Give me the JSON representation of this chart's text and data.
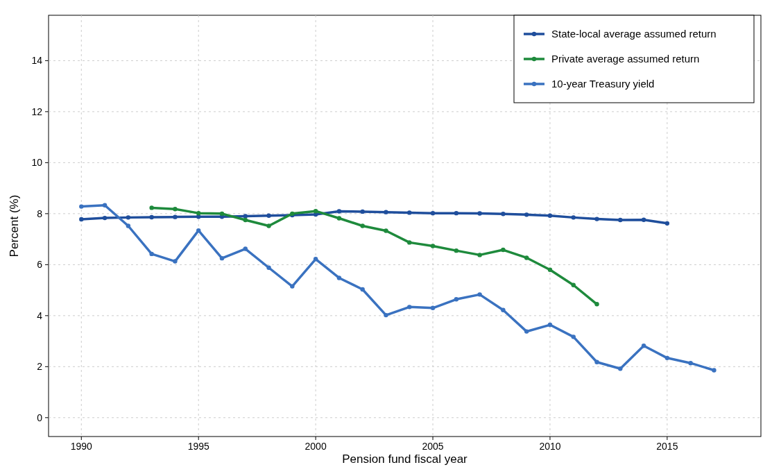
{
  "chart_data": {
    "type": "line",
    "xlabel": "Pension fund fiscal year",
    "ylabel": "Percent (%)",
    "xlim": [
      1988.6,
      2019
    ],
    "xticks": [
      1990,
      1995,
      2000,
      2005,
      2010,
      2015
    ],
    "ylim": [
      -0.74,
      15.78
    ],
    "yticks": [
      0,
      2,
      4,
      6,
      8,
      10,
      12,
      14
    ],
    "grid": true,
    "legend": "top right",
    "marker": "circle",
    "line_style": "solid",
    "series": [
      {
        "name": "State-local average assumed return",
        "color": "#1f4e9c",
        "x": [
          1990,
          1991,
          1992,
          1993,
          1994,
          1995,
          1996,
          1997,
          1998,
          1999,
          2000,
          2001,
          2002,
          2003,
          2004,
          2005,
          2006,
          2007,
          2008,
          2009,
          2010,
          2011,
          2012,
          2013,
          2014,
          2015
        ],
        "values": [
          7.78,
          7.83,
          7.85,
          7.86,
          7.87,
          7.88,
          7.88,
          7.9,
          7.92,
          7.94,
          7.97,
          8.09,
          8.08,
          8.06,
          8.04,
          8.02,
          8.02,
          8.01,
          7.99,
          7.96,
          7.92,
          7.85,
          7.79,
          7.75,
          7.76,
          7.62
        ]
      },
      {
        "name": "Private average assumed return",
        "color": "#1e8a3c",
        "x": [
          1993,
          1994,
          1995,
          1996,
          1997,
          1998,
          1999,
          2000,
          2001,
          2002,
          2003,
          2004,
          2005,
          2006,
          2007,
          2008,
          2009,
          2010,
          2011,
          2012
        ],
        "values": [
          8.23,
          8.18,
          8.02,
          8.0,
          7.75,
          7.52,
          8.0,
          8.1,
          7.82,
          7.52,
          7.33,
          6.87,
          6.73,
          6.55,
          6.38,
          6.58,
          6.27,
          5.8,
          5.2,
          4.45
        ]
      },
      {
        "name": "10-year Treasury yield",
        "color": "#3a72c0",
        "x": [
          1990,
          1991,
          1992,
          1993,
          1994,
          1995,
          1996,
          1997,
          1998,
          1999,
          2000,
          2001,
          2002,
          2003,
          2004,
          2005,
          2006,
          2007,
          2008,
          2009,
          2010,
          2011,
          2012,
          2013,
          2014,
          2015,
          2016,
          2017
        ],
        "values": [
          8.28,
          8.33,
          7.52,
          6.42,
          6.13,
          7.34,
          6.25,
          6.62,
          5.88,
          5.15,
          6.22,
          5.48,
          5.03,
          4.02,
          4.34,
          4.3,
          4.64,
          4.83,
          4.22,
          3.38,
          3.64,
          3.17,
          2.18,
          1.92,
          2.82,
          2.34,
          2.14,
          1.86
        ]
      }
    ]
  }
}
